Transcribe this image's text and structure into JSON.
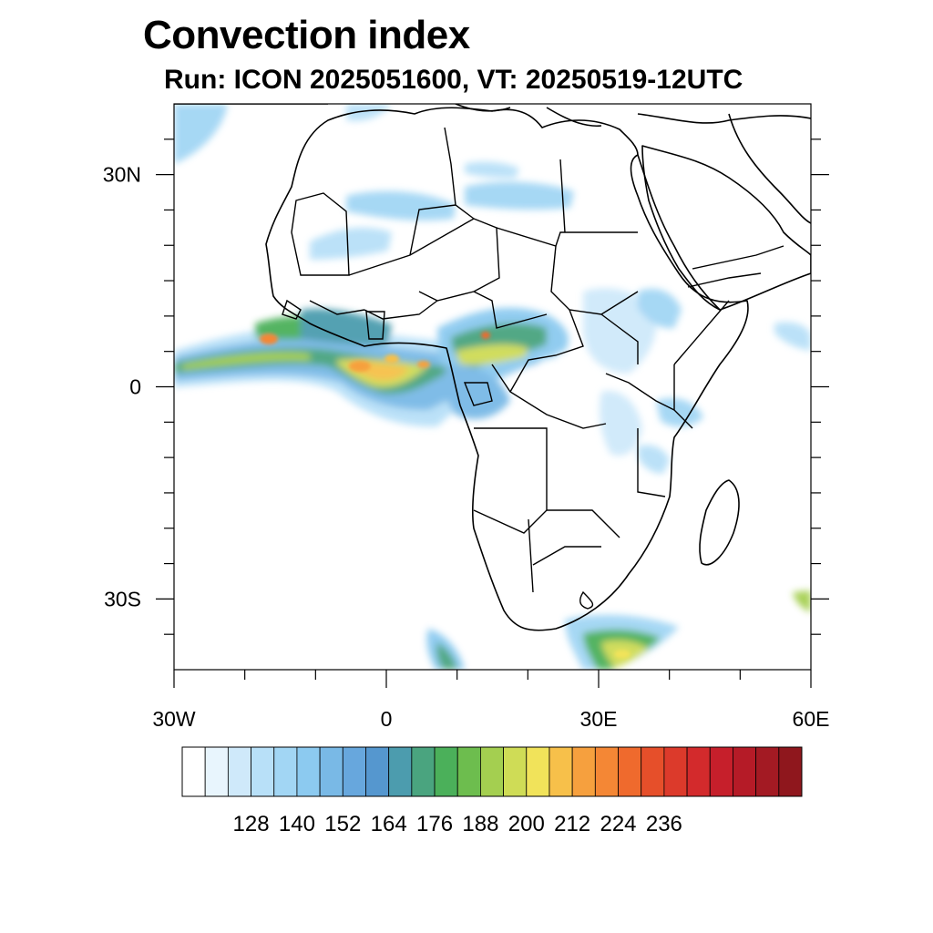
{
  "title": "Convection index",
  "subtitle": "Run: ICON 2025051600,  VT: 20250519-12UTC",
  "map": {
    "extent": {
      "lon_min": -30,
      "lon_max": 60,
      "lat_min": -40,
      "lat_max": 40
    },
    "lat_labels": [
      {
        "lat": 30,
        "text": "30N"
      },
      {
        "lat": 0,
        "text": "0"
      },
      {
        "lat": -30,
        "text": "30S"
      }
    ],
    "lon_labels": [
      {
        "lon": -30,
        "text": "30W"
      },
      {
        "lon": 0,
        "text": "0"
      },
      {
        "lon": 30,
        "text": "30E"
      },
      {
        "lon": 60,
        "text": "60E"
      }
    ],
    "minor_lat_ticks": [
      35,
      25,
      20,
      15,
      10,
      5,
      -5,
      -10,
      -15,
      -20,
      -25,
      -35
    ],
    "minor_lon_ticks": [
      -20,
      -10,
      10,
      20,
      40,
      50
    ]
  },
  "colorbar": {
    "colors": [
      "#ffffff",
      "#e8f5fd",
      "#cfe9fa",
      "#b8e0f8",
      "#a2d6f4",
      "#8ccaf0",
      "#79b9e6",
      "#67a7dd",
      "#5597cf",
      "#4c9cae",
      "#4aa47f",
      "#4bb05a",
      "#6dbd4e",
      "#a4cf50",
      "#cfdc56",
      "#f1e35a",
      "#f7c04a",
      "#f6a03e",
      "#f48735",
      "#ef6a2d",
      "#e64f2a",
      "#dc3a2b",
      "#d32a2c",
      "#c61f2b",
      "#b51b27",
      "#a31a23",
      "#8f171d"
    ],
    "labels": [
      "128",
      "140",
      "152",
      "164",
      "176",
      "188",
      "200",
      "212",
      "224",
      "236"
    ]
  }
}
